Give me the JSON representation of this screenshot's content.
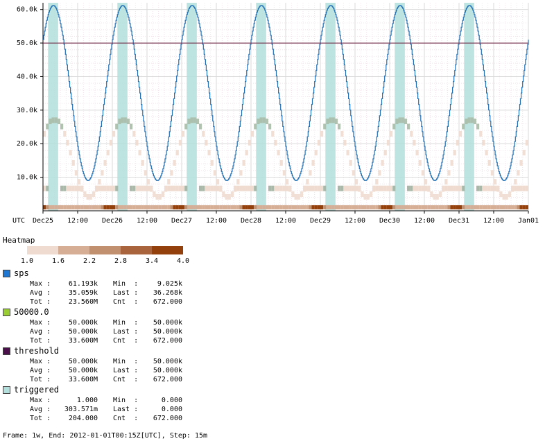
{
  "chart_data": {
    "type": "line",
    "x_labels": [
      "UTC",
      "Dec25",
      "12:00",
      "Dec26",
      "12:00",
      "Dec27",
      "12:00",
      "Dec28",
      "12:00",
      "Dec29",
      "12:00",
      "Dec30",
      "12:00",
      "Dec31",
      "12:00",
      "Jan01"
    ],
    "y_ticks": [
      "10.0k",
      "20.0k",
      "30.0k",
      "40.0k",
      "50.0k",
      "60.0k"
    ],
    "y_values": [
      10000,
      20000,
      30000,
      40000,
      50000,
      60000
    ],
    "ylim": [
      0,
      62000
    ],
    "grid": true,
    "series": [
      {
        "name": "sps",
        "color": "#1f6fb5",
        "kind": "sine",
        "min": 9025,
        "max": 61193,
        "period_hours": 24,
        "peak_hour": 3.5
      },
      {
        "name": "threshold",
        "color": "#6a1b3a",
        "kind": "constant",
        "value": 50000
      },
      {
        "name": "triggered",
        "color": "#b2dfdb",
        "kind": "bands",
        "bands_hours": [
          [
            1.75,
            5.25
          ]
        ]
      }
    ],
    "heatmap": {
      "label": "Heatmap",
      "scale_ticks": [
        "1.0",
        "1.6",
        "2.2",
        "2.8",
        "3.4",
        "4.0"
      ],
      "colors": [
        "#efdbd0",
        "#d6ad95",
        "#c0906f",
        "#a9643d",
        "#94400c"
      ]
    }
  },
  "legend": [
    {
      "name": "sps",
      "color": "#1f77d4",
      "max": "61.193k",
      "min": "9.025k",
      "avg": "35.059k",
      "last": "36.268k",
      "tot": "23.560M",
      "cnt": "672.000"
    },
    {
      "name": "50000.0",
      "color": "#9acd32",
      "max": "50.000k",
      "min": "50.000k",
      "avg": "50.000k",
      "last": "50.000k",
      "tot": "33.600M",
      "cnt": "672.000"
    },
    {
      "name": "threshold",
      "color": "#4b0f4b",
      "max": "50.000k",
      "min": "50.000k",
      "avg": "50.000k",
      "last": "50.000k",
      "tot": "33.600M",
      "cnt": "672.000"
    },
    {
      "name": "triggered",
      "color": "#b2dfdb",
      "max": "1.000",
      "min": "0.000",
      "avg": "303.571m",
      "last": "0.000",
      "tot": "204.000",
      "cnt": "672.000"
    }
  ],
  "labels": {
    "max": "Max :",
    "min": "Min  :",
    "avg": "Avg :",
    "last": "Last :",
    "tot": "Tot :",
    "cnt": "Cnt  :"
  },
  "footer": "Frame: 1w, End: 2012-01-01T00:15Z[UTC], Step: 15m"
}
